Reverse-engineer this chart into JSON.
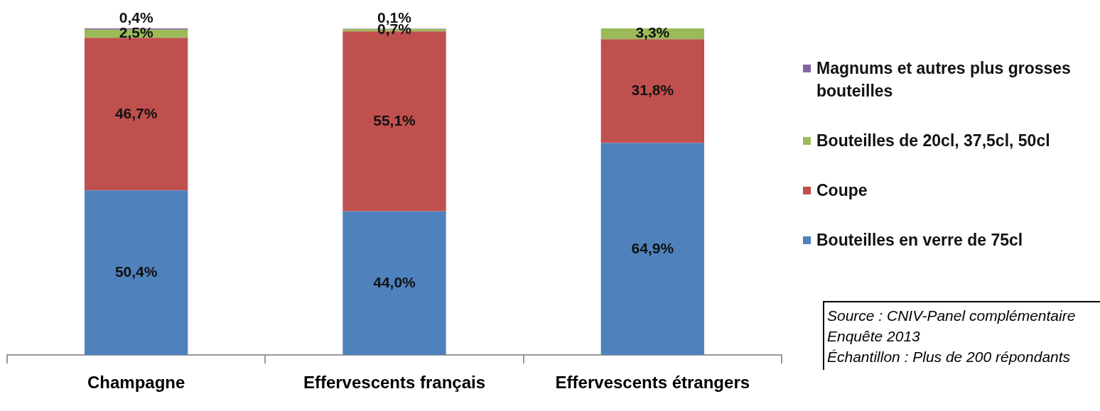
{
  "chart_data": {
    "type": "bar",
    "stacked": true,
    "categories": [
      "Champagne",
      "Effervescents français",
      "Effervescents étrangers"
    ],
    "series": [
      {
        "name": "Bouteilles en verre de 75cl",
        "color": "#4f81bd",
        "values": [
          50.4,
          44.0,
          64.9
        ],
        "value_labels": [
          "50,4%",
          "44,0%",
          "64,9%"
        ]
      },
      {
        "name": "Coupe",
        "color": "#c0504d",
        "values": [
          46.7,
          55.1,
          31.8
        ],
        "value_labels": [
          "46,7%",
          "55,1%",
          "31,8%"
        ]
      },
      {
        "name": "Bouteilles de 20cl, 37,5cl, 50cl",
        "color": "#9bbb59",
        "values": [
          2.5,
          0.7,
          3.3
        ],
        "value_labels": [
          "2,5%",
          "0,7%",
          "3,3%"
        ]
      },
      {
        "name": "Magnums et autres plus grosses bouteilles",
        "color": "#8064a2",
        "values": [
          0.4,
          0.1,
          null
        ],
        "value_labels": [
          "0,4%",
          "0,1%",
          null
        ]
      }
    ],
    "legend": "right",
    "tick_labels": "x",
    "grid": false,
    "annotations": [
      "Source : CNIV-Panel complémentaire",
      "Enquête 2013",
      "Échantillon : Plus de 200 répondants"
    ]
  }
}
